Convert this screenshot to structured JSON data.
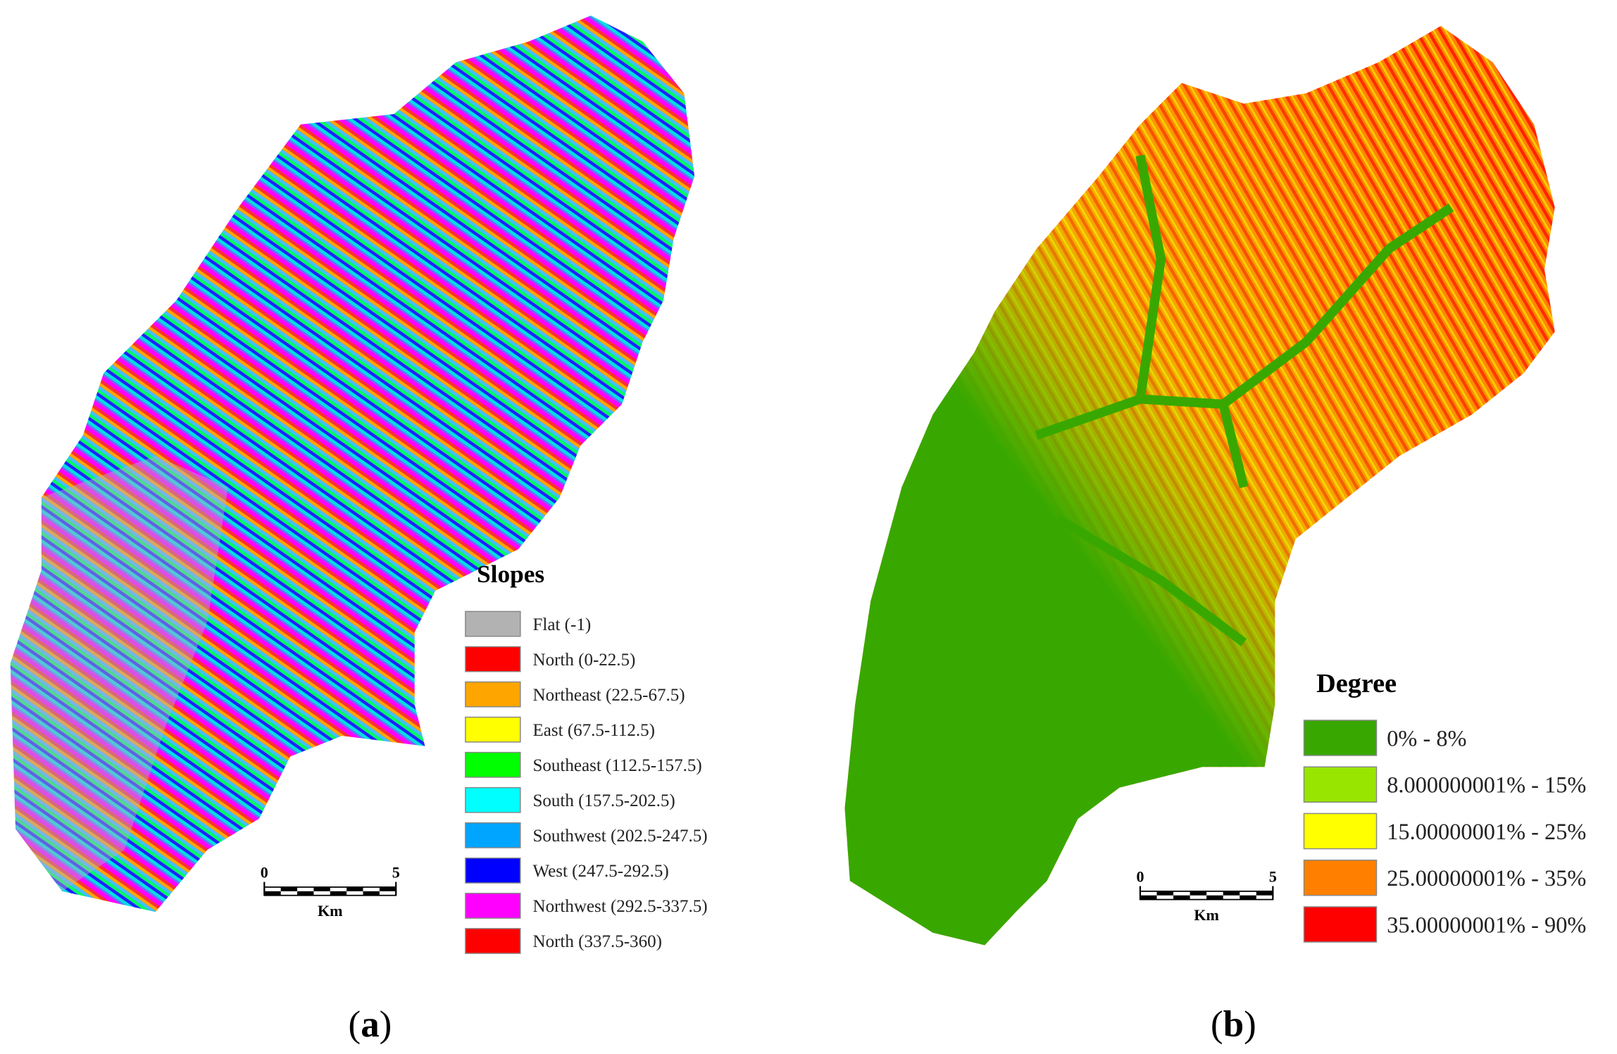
{
  "panels": [
    {
      "caption": {
        "open": "(",
        "letter": "a",
        "close": ")"
      },
      "legend": {
        "title": "Slopes",
        "items": [
          {
            "label": "Flat (-1)",
            "color": "#b2b2b2"
          },
          {
            "label": "North (0-22.5)",
            "color": "#ff0000"
          },
          {
            "label": "Northeast (22.5-67.5)",
            "color": "#ffa500"
          },
          {
            "label": "East (67.5-112.5)",
            "color": "#ffff00"
          },
          {
            "label": "Southeast (112.5-157.5)",
            "color": "#00ff00"
          },
          {
            "label": "South (157.5-202.5)",
            "color": "#00ffff"
          },
          {
            "label": "Southwest (202.5-247.5)",
            "color": "#00a5ff"
          },
          {
            "label": "West (247.5-292.5)",
            "color": "#0000ff"
          },
          {
            "label": "Northwest (292.5-337.5)",
            "color": "#ff00ff"
          },
          {
            "label": "North (337.5-360)",
            "color": "#ff0000"
          }
        ]
      },
      "scale_bar": {
        "labels": [
          0,
          5
        ],
        "unit": "Km"
      }
    },
    {
      "caption": {
        "open": "(",
        "letter": "b",
        "close": ")"
      },
      "legend": {
        "title": "Degree",
        "items": [
          {
            "label": "0% - 8%",
            "color": "#38a800"
          },
          {
            "label": "8.000000001% - 15%",
            "color": "#98e600"
          },
          {
            "label": "15.00000001% - 25%",
            "color": "#ffff00"
          },
          {
            "label": "25.00000001% - 35%",
            "color": "#ff8000"
          },
          {
            "label": "35.00000001% - 90%",
            "color": "#ff0000"
          }
        ]
      },
      "scale_bar": {
        "labels": [
          0,
          5
        ],
        "unit": "Km"
      }
    }
  ]
}
